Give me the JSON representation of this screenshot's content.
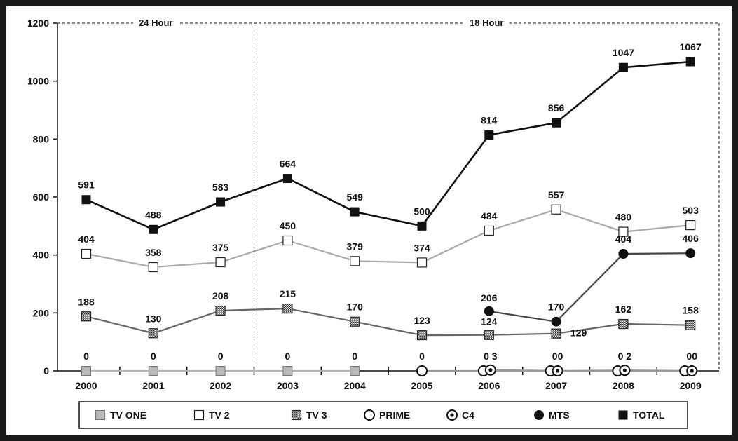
{
  "chart_data": {
    "type": "line",
    "title": "",
    "xlabel": "",
    "ylabel": "",
    "x": [
      "2000",
      "2001",
      "2002",
      "2003",
      "2004",
      "2005",
      "2006",
      "2007",
      "2008",
      "2009"
    ],
    "ylim": [
      0,
      1200
    ],
    "yticks": [
      0,
      200,
      400,
      600,
      800,
      1000,
      1200
    ],
    "grid": false,
    "legend": "bottom",
    "bands": [
      {
        "label": "24 Hour",
        "from": "2000",
        "to": "2002"
      },
      {
        "label": "18 Hour",
        "from": "2003",
        "to": "2009"
      }
    ],
    "series": [
      {
        "name": "TV ONE",
        "marker": "square-gray",
        "color": "#b5b5b5",
        "values": [
          0,
          0,
          0,
          0,
          0,
          null,
          null,
          null,
          null,
          null
        ],
        "labels": [
          "0",
          "0",
          "0",
          "0",
          "0",
          "",
          "",
          "",
          "",
          ""
        ]
      },
      {
        "name": "TV 2",
        "marker": "square-open",
        "color": "#aaaaaa",
        "values": [
          404,
          358,
          375,
          450,
          379,
          374,
          484,
          557,
          480,
          503
        ],
        "labels": [
          "404",
          "358",
          "375",
          "450",
          "379",
          "374",
          "484",
          "557",
          "480",
          "503"
        ]
      },
      {
        "name": "TV 3",
        "marker": "square-hatched",
        "color": "#666666",
        "values": [
          188,
          130,
          208,
          215,
          170,
          123,
          124,
          129,
          162,
          158
        ],
        "labels": [
          "188",
          "130",
          "208",
          "215",
          "170",
          "123",
          "124",
          "129",
          "162",
          "158"
        ]
      },
      {
        "name": "PRIME",
        "marker": "circle-open",
        "color": "#999999",
        "values": [
          null,
          null,
          null,
          null,
          null,
          0,
          0,
          0,
          0,
          0
        ],
        "labels": [
          "",
          "",
          "",
          "",
          "",
          "0",
          "0",
          "0",
          "0",
          "0"
        ]
      },
      {
        "name": "C4",
        "marker": "circle-dot",
        "color": "#999999",
        "values": [
          null,
          null,
          null,
          null,
          null,
          null,
          3,
          0,
          2,
          0
        ],
        "labels": [
          "",
          "",
          "",
          "",
          "",
          "",
          "0 3",
          "00",
          "0 2",
          "00"
        ]
      },
      {
        "name": "MTS",
        "marker": "circle-filled",
        "color": "#444444",
        "values": [
          null,
          null,
          null,
          null,
          null,
          null,
          206,
          170,
          404,
          406
        ],
        "labels": [
          "",
          "",
          "",
          "",
          "",
          "",
          "206",
          "170",
          "404",
          "406"
        ]
      },
      {
        "name": "TOTAL",
        "marker": "square-filled",
        "color": "#111111",
        "values": [
          591,
          488,
          583,
          664,
          549,
          500,
          814,
          856,
          1047,
          1067
        ],
        "labels": [
          "591",
          "488",
          "583",
          "664",
          "549",
          "500",
          "814",
          "856",
          "1047",
          "1067"
        ]
      }
    ]
  }
}
